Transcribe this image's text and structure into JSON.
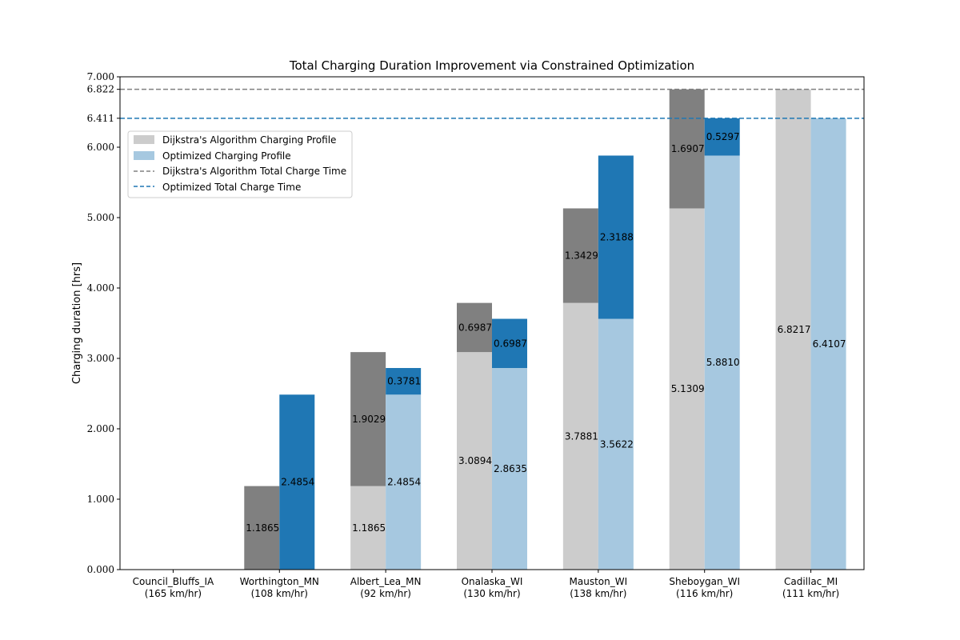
{
  "chart_data": {
    "type": "bar",
    "title": "Total Charging Duration Improvement via Constrained Optimization",
    "ylabel": "Charging duration [hrs]",
    "xlabel": "",
    "ylim": [
      0,
      7.0
    ],
    "yticks": [
      0,
      1,
      2,
      3,
      4,
      5,
      6,
      6.411,
      6.822,
      7
    ],
    "ytick_labels": [
      "0.000",
      "1.000",
      "2.000",
      "3.000",
      "4.000",
      "5.000",
      "6.000",
      "6.411",
      "6.822",
      "7.000"
    ],
    "grid": false,
    "legend_position": "upper-left",
    "categories": [
      {
        "name": "Council_Bluffs_IA",
        "speed": "(165 km/hr)"
      },
      {
        "name": "Worthington_MN",
        "speed": "(108 km/hr)"
      },
      {
        "name": "Albert_Lea_MN",
        "speed": "(92 km/hr)"
      },
      {
        "name": "Onalaska_WI",
        "speed": "(130 km/hr)"
      },
      {
        "name": "Mauston_WI",
        "speed": "(138 km/hr)"
      },
      {
        "name": "Sheboygan_WI",
        "speed": "(116 km/hr)"
      },
      {
        "name": "Cadillac_MI",
        "speed": "(111 km/hr)"
      }
    ],
    "series": [
      {
        "name": "Dijkstra's Algorithm Charging Profile",
        "cumulative": [
          0,
          0,
          1.1865,
          3.0894,
          3.7881,
          5.1309,
          6.8217
        ],
        "cumulative_labels": [
          "",
          "",
          "1.1865",
          "3.0894",
          "3.7881",
          "5.1309",
          "6.8217"
        ],
        "increment": [
          0,
          1.1865,
          1.9029,
          0.6987,
          1.3429,
          1.6907,
          0
        ],
        "increment_labels": [
          "",
          "1.1865",
          "1.9029",
          "0.6987",
          "1.3429",
          "1.6907",
          ""
        ]
      },
      {
        "name": "Optimized Charging Profile",
        "cumulative": [
          0,
          0,
          2.4854,
          2.8635,
          3.5622,
          5.881,
          6.4107
        ],
        "cumulative_labels": [
          "",
          "",
          "2.4854",
          "2.8635",
          "3.5622",
          "5.8810",
          "6.4107"
        ],
        "increment": [
          0,
          2.4854,
          0.3781,
          0.6987,
          2.3188,
          0.5297,
          0
        ],
        "increment_labels": [
          "",
          "2.4854",
          "0.3781",
          "0.6987",
          "2.3188",
          "0.5297",
          ""
        ]
      }
    ],
    "reference_lines": [
      {
        "name": "Dijkstra's Algorithm Total Charge Time",
        "value": 6.822
      },
      {
        "name": "Optimized Total Charge Time",
        "value": 6.411
      }
    ],
    "colors": {
      "dijkstra_base": "#cccccc",
      "dijkstra_increment": "#808080",
      "optimized_base": "#a6c8e0",
      "optimized_increment": "#1f77b4",
      "dijkstra_line": "#808080",
      "optimized_line": "#1f77b4"
    }
  }
}
